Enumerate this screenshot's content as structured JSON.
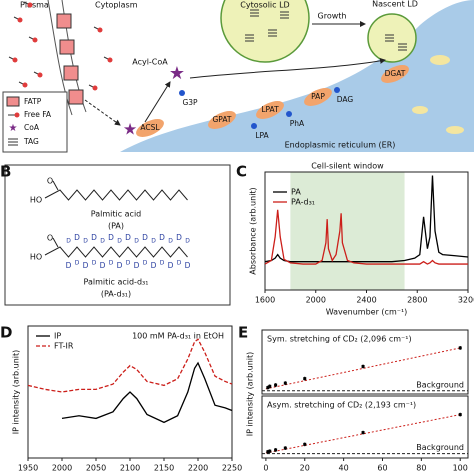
{
  "panel_labels": [
    "B",
    "C",
    "D",
    "E"
  ],
  "diagram": {
    "plasma": "Plasma",
    "cytoplasm": "Cytoplasm",
    "cytosolic_ld": "Cytosolic LD",
    "nascent_ld": "Nascent LD",
    "growth": "Growth",
    "acyl_coa": "Acyl-CoA",
    "legend": [
      "FATP",
      "Free FA",
      "CoA",
      "TAG"
    ],
    "enzymes": [
      "ACSL",
      "GPAT",
      "LPAT",
      "PAP",
      "DGAT"
    ],
    "metabolites": [
      "G3P",
      "LPA",
      "PhA",
      "DAG"
    ],
    "er": "Endoplasmic reticulum (ER)"
  },
  "structures": {
    "O": "O",
    "HO": "HO",
    "D": "D",
    "pa_name": "Palmitic acid",
    "pa_abbr": "(PA)",
    "pad_name": "Palmitic acid-d₃₁",
    "pad_abbr": "(PA-d₃₁)"
  },
  "chart_data": [
    {
      "type": "line",
      "title": "Cell-silent window",
      "xlabel": "Wavenumber (cm⁻¹)",
      "ylabel": "Absorbance (arb.unit)",
      "x": [
        1600,
        1650,
        1680,
        1700,
        1720,
        1750,
        1800,
        1900,
        2000,
        2050,
        2080,
        2090,
        2100,
        2130,
        2160,
        2190,
        2200,
        2210,
        2250,
        2300,
        2400,
        2500,
        2600,
        2700,
        2780,
        2820,
        2850,
        2880,
        2900,
        2920,
        2940,
        2970,
        3000,
        3100,
        3200
      ],
      "series": [
        {
          "name": "PA",
          "color": "#000000",
          "values": [
            0.24,
            0.25,
            0.27,
            0.3,
            0.27,
            0.25,
            0.24,
            0.24,
            0.24,
            0.24,
            0.24,
            0.24,
            0.24,
            0.24,
            0.24,
            0.24,
            0.24,
            0.24,
            0.24,
            0.24,
            0.24,
            0.24,
            0.24,
            0.25,
            0.27,
            0.3,
            0.62,
            0.35,
            0.45,
            0.97,
            0.5,
            0.32,
            0.3,
            0.29,
            0.28
          ]
        },
        {
          "name": "PA-d₃₁",
          "color": "#cc1f1a",
          "values": [
            0.22,
            0.25,
            0.45,
            0.68,
            0.45,
            0.26,
            0.23,
            0.22,
            0.22,
            0.25,
            0.4,
            0.6,
            0.35,
            0.25,
            0.3,
            0.5,
            0.65,
            0.4,
            0.25,
            0.23,
            0.22,
            0.22,
            0.22,
            0.22,
            0.22,
            0.22,
            0.24,
            0.22,
            0.23,
            0.25,
            0.23,
            0.22,
            0.22,
            0.22,
            0.22
          ]
        }
      ],
      "shaded_region": [
        1800,
        2700
      ],
      "shade_color": "#dcebd6",
      "xlim": [
        1600,
        3200
      ],
      "xticks": [
        1600,
        2000,
        2400,
        2800,
        3200
      ],
      "ylim": [
        0,
        1
      ],
      "legend": "upper left"
    },
    {
      "type": "line",
      "annotation": "100 mM PA-d₃₁ in EtOH",
      "ylabel": "IP intensity (arb.unit)",
      "x": [
        1950,
        1975,
        2000,
        2025,
        2050,
        2075,
        2090,
        2100,
        2110,
        2125,
        2150,
        2170,
        2185,
        2195,
        2200,
        2210,
        2225,
        2240,
        2250
      ],
      "series": [
        {
          "name": "IP",
          "color": "#000000",
          "dashed": false,
          "values": [
            null,
            null,
            0.3,
            0.32,
            0.3,
            0.35,
            0.45,
            0.5,
            0.45,
            0.33,
            0.27,
            0.32,
            0.5,
            0.68,
            0.72,
            0.6,
            0.4,
            0.38,
            0.36
          ]
        },
        {
          "name": "FT-IR",
          "color": "#cc1f1a",
          "dashed": true,
          "values": [
            0.55,
            0.52,
            0.5,
            0.52,
            0.52,
            0.56,
            0.65,
            0.7,
            0.67,
            0.58,
            0.55,
            0.6,
            0.75,
            0.88,
            0.9,
            0.8,
            0.62,
            0.58,
            0.56
          ]
        }
      ],
      "xlim": [
        1950,
        2250
      ],
      "xticks": [
        1950,
        2000,
        2050,
        2100,
        2150,
        2200,
        2250
      ],
      "ylim": [
        0,
        1
      ],
      "legend": "upper left"
    },
    {
      "type": "scatter",
      "title": "Sym. stretching of CD₂ (2,096 cm⁻¹)",
      "ylabel": "IP intensity (arb.unit)",
      "background_label": "Background",
      "x": [
        1,
        2,
        5,
        10,
        20,
        50,
        100
      ],
      "values": [
        0.1,
        0.12,
        0.14,
        0.17,
        0.24,
        0.43,
        0.72
      ],
      "errors": [
        0.03,
        0.03,
        0.03,
        0.03,
        0.03,
        0.03,
        0.03
      ],
      "fit": [
        0.08,
        0.72
      ],
      "background": 0.05,
      "color": "#000000",
      "fit_color": "#cc1f1a",
      "xlim": [
        -2,
        104
      ],
      "ylim": [
        0,
        1
      ]
    },
    {
      "type": "scatter",
      "title": "Asym. stretching of CD₂ (2,193 cm⁻¹)",
      "background_label": "Background",
      "x": [
        1,
        2,
        5,
        10,
        20,
        50,
        100
      ],
      "values": [
        0.1,
        0.11,
        0.13,
        0.16,
        0.22,
        0.41,
        0.7
      ],
      "errors": [
        0.03,
        0.03,
        0.03,
        0.03,
        0.03,
        0.03,
        0.03
      ],
      "fit": [
        0.08,
        0.7
      ],
      "background": 0.07,
      "color": "#000000",
      "fit_color": "#cc1f1a",
      "xlim": [
        -2,
        104
      ],
      "xticks": [
        0,
        20,
        40,
        60,
        80,
        100
      ],
      "ylim": [
        0,
        1
      ]
    }
  ]
}
